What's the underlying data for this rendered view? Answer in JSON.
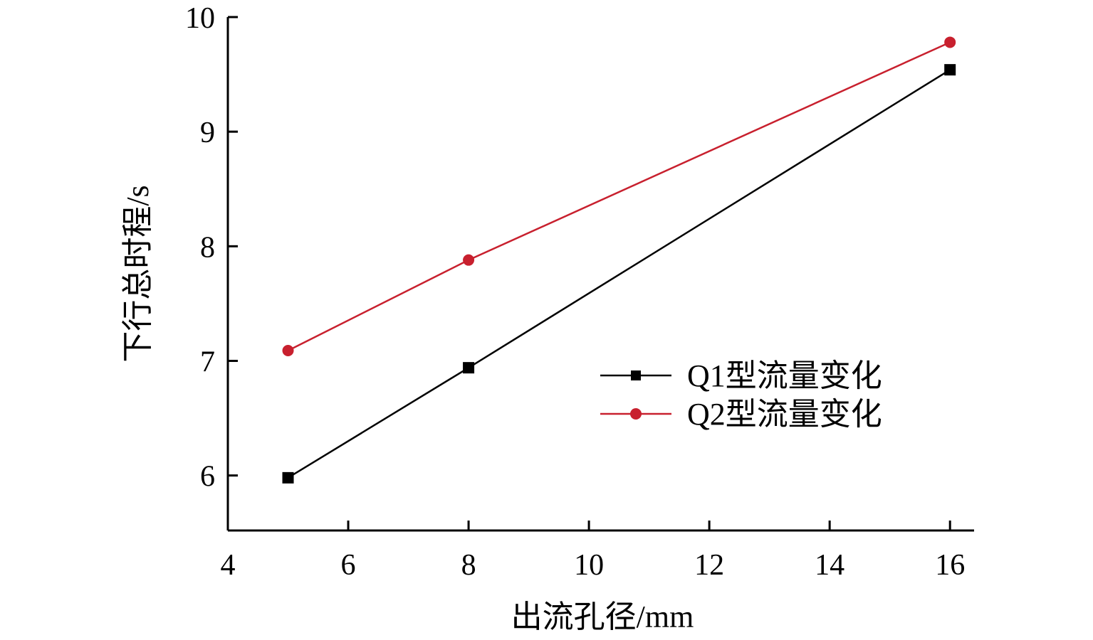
{
  "chart_data": {
    "type": "line",
    "title": "",
    "xlabel": "出流孔径/mm",
    "ylabel": "下行总时程/s",
    "xlim": [
      4,
      16.4
    ],
    "ylim": [
      5.52,
      10
    ],
    "xticks": [
      4,
      6,
      8,
      10,
      12,
      14,
      16
    ],
    "yticks": [
      6,
      7,
      8,
      9,
      10
    ],
    "grid": false,
    "legend_position": "center-right",
    "series": [
      {
        "name": "Q1型流量变化",
        "marker": "square",
        "color": "#000000",
        "x": [
          5,
          8,
          16
        ],
        "y": [
          5.98,
          6.94,
          9.54
        ]
      },
      {
        "name": "Q2型流量变化",
        "marker": "circle",
        "color": "#c8202e",
        "x": [
          5,
          8,
          16
        ],
        "y": [
          7.09,
          7.88,
          9.78
        ]
      }
    ]
  }
}
